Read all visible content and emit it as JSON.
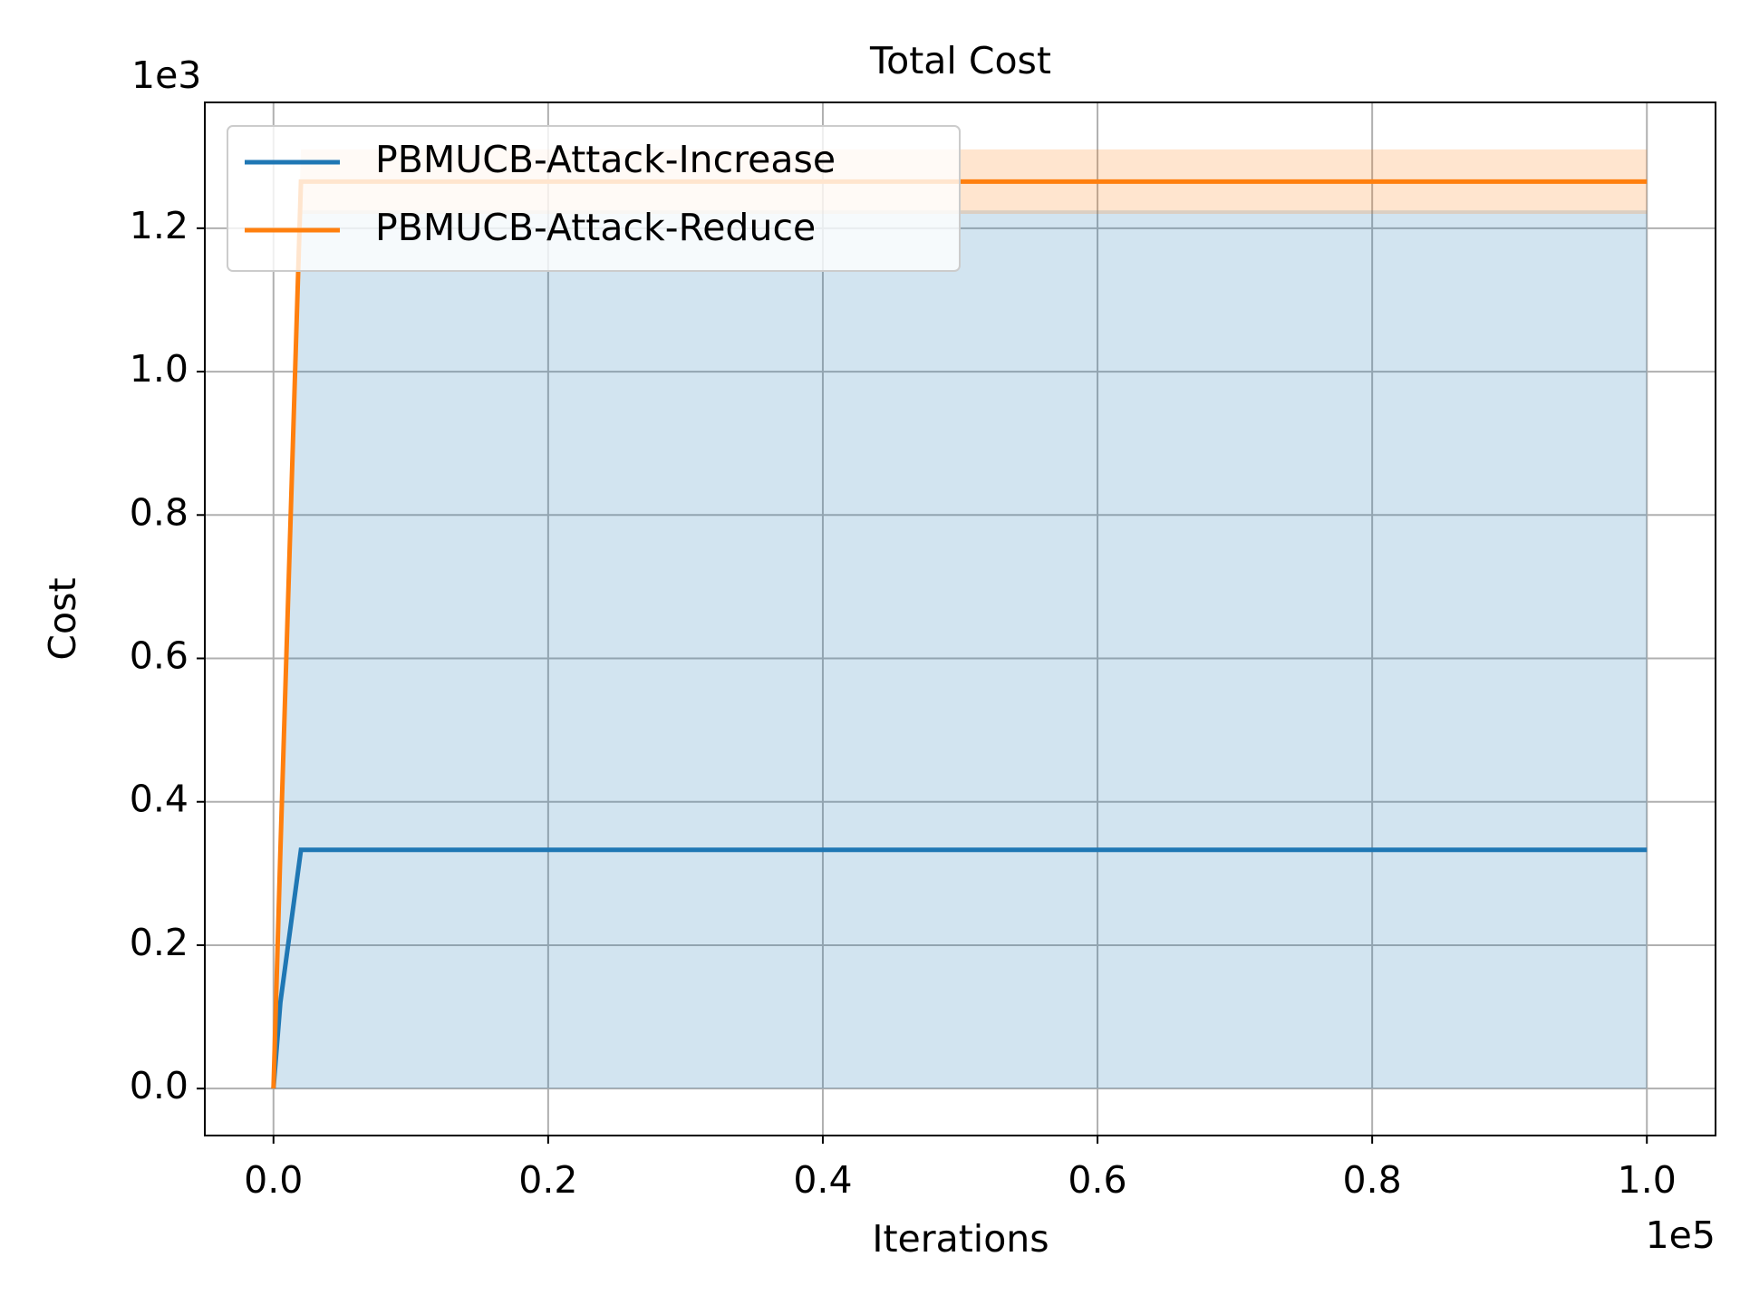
{
  "chart_data": {
    "type": "line",
    "title": "Total Cost",
    "x_label": "Iterations",
    "y_label": "Cost",
    "x_offset_label": "1e5",
    "y_offset_label": "1e3",
    "x": [
      0,
      0.005,
      0.02,
      1.0
    ],
    "series": [
      {
        "name": "PBMUCB-Attack-Increase",
        "color": "#1f77b4",
        "values": [
          0,
          0.12,
          0.333,
          0.333
        ],
        "lower": [
          0,
          0,
          0,
          0
        ],
        "upper": [
          0,
          0.3,
          1.225,
          1.225
        ]
      },
      {
        "name": "PBMUCB-Attack-Reduce",
        "color": "#ff7f0e",
        "values": [
          0,
          0.33,
          1.265,
          1.265
        ],
        "lower": [
          0,
          0.32,
          1.22,
          1.22
        ],
        "upper": [
          0,
          0.34,
          1.31,
          1.31
        ]
      }
    ],
    "xlim": [
      -0.05,
      1.05
    ],
    "xticks": [
      {
        "value": 0,
        "label": "0.0"
      },
      0.2,
      0.4,
      0.6,
      0.8,
      {
        "value": 1,
        "label": "1.0"
      }
    ],
    "ylim": [
      -0.0655,
      1.3755
    ],
    "yticks": [
      {
        "value": 0,
        "label": "0.0"
      },
      0.2,
      0.4,
      0.6,
      0.8,
      {
        "value": 1,
        "label": "1.0"
      },
      1.2
    ],
    "grid": true,
    "legend": "upper left"
  }
}
